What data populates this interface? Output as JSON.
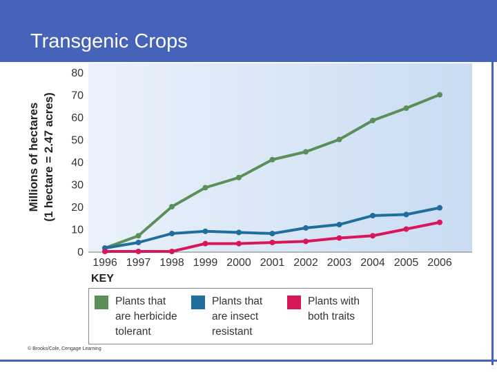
{
  "slide": {
    "title": "Transgenic Crops"
  },
  "credit": "© Brooks/Cole, Cengage Learning",
  "colors": {
    "title_bar": "#4563b9",
    "plot_bg": "#d2e2f4",
    "herbicide": "#5a8f5a",
    "insect": "#1f6e9c",
    "both": "#d8175a"
  },
  "chart_data": {
    "type": "line",
    "ylabel_line1": "Millions of hectares",
    "ylabel_line2": "(1 hectare = 2.47 acres)",
    "xlabel": "",
    "x": [
      "1996",
      "1997",
      "1998",
      "1999",
      "2000",
      "2001",
      "2002",
      "2003",
      "2004",
      "2005",
      "2006"
    ],
    "ylim": [
      0,
      80
    ],
    "yticks": [
      0,
      10,
      20,
      30,
      40,
      50,
      60,
      70,
      80
    ],
    "grid": false,
    "legend_title": "KEY",
    "legend_placement": "bottom",
    "series": [
      {
        "key": "herbicide",
        "name": "Plants that\nare herbicide\ntolerant",
        "values": [
          1.5,
          7,
          20,
          28.5,
          33,
          41,
          44.5,
          50,
          58.5,
          64,
          70
        ]
      },
      {
        "key": "insect",
        "name": "Plants that\nare insect\nresistant",
        "values": [
          1.5,
          4,
          8,
          9,
          8.5,
          8,
          10.5,
          12,
          16,
          16.5,
          19.5
        ]
      },
      {
        "key": "both",
        "name": "Plants with\nboth traits",
        "values": [
          0,
          0,
          0,
          3.5,
          3.5,
          4,
          4.5,
          6,
          7,
          10,
          13
        ]
      }
    ]
  }
}
